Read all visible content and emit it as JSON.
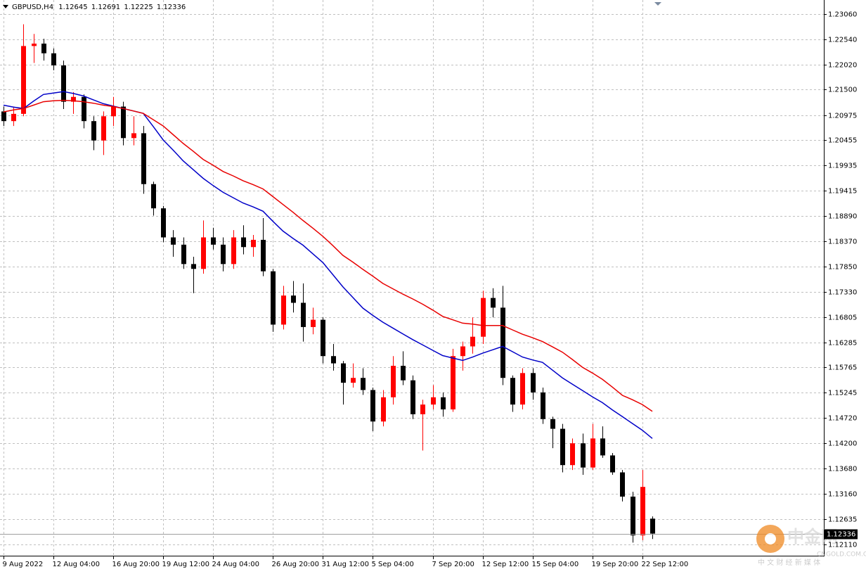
{
  "chart_data": {
    "type": "candlestick",
    "symbol": "GBPUSD,H4",
    "ohlc": [
      1.12645,
      1.12691,
      1.12225,
      1.12336
    ],
    "current_price": 1.12336,
    "up_color": "#ff0000",
    "down_color": "#000000",
    "categories": [
      "9 Aug 2022",
      null,
      null,
      null,
      null,
      "12 Aug 04:00",
      null,
      null,
      null,
      null,
      null,
      "16 Aug 20:00",
      null,
      null,
      null,
      null,
      "19 Aug 12:00",
      null,
      null,
      null,
      null,
      "24 Aug 04:00",
      null,
      null,
      null,
      null,
      null,
      "26 Aug 20:00",
      null,
      null,
      null,
      null,
      "31 Aug 12:00",
      null,
      null,
      null,
      null,
      "5 Sep 04:00",
      null,
      null,
      null,
      null,
      null,
      "7 Sep 20:00",
      null,
      null,
      null,
      null,
      "12 Sep 12:00",
      null,
      null,
      null,
      null,
      "15 Sep 04:00",
      null,
      null,
      null,
      null,
      null,
      "19 Sep 20:00",
      null,
      null,
      null,
      null,
      "22 Sep 12:00",
      null
    ],
    "open": [
      1.2105,
      1.2085,
      1.21,
      1.224,
      1.2245,
      1.2225,
      1.22,
      1.2125,
      1.2135,
      1.2085,
      1.2045,
      1.2095,
      1.2115,
      1.205,
      1.206,
      1.1955,
      1.1905,
      1.1845,
      1.183,
      1.179,
      1.178,
      1.1845,
      1.183,
      1.179,
      1.1845,
      1.1825,
      1.184,
      1.1775,
      1.1665,
      1.1725,
      1.171,
      1.166,
      1.1675,
      1.16,
      1.1585,
      1.1545,
      1.1555,
      1.153,
      1.1465,
      1.1515,
      1.158,
      1.155,
      1.148,
      1.15,
      1.1515,
      1.149,
      1.16,
      1.162,
      1.164,
      1.172,
      1.17,
      1.1555,
      1.15,
      1.1565,
      1.1525,
      1.147,
      1.145,
      1.1375,
      1.142,
      1.137,
      1.143,
      1.1395,
      1.136,
      1.131,
      1.123,
      1.12645
    ],
    "high": [
      1.2115,
      1.2115,
      1.2285,
      1.2265,
      1.2255,
      1.2235,
      1.221,
      1.2145,
      1.214,
      1.2095,
      1.2105,
      1.2135,
      1.2125,
      1.2095,
      1.2075,
      1.196,
      1.191,
      1.186,
      1.1845,
      1.1805,
      1.188,
      1.1865,
      1.1845,
      1.186,
      1.187,
      1.185,
      1.1885,
      1.178,
      1.1745,
      1.1755,
      1.175,
      1.17,
      1.168,
      1.1625,
      1.159,
      1.1585,
      1.1575,
      1.1535,
      1.153,
      1.16,
      1.161,
      1.156,
      1.151,
      1.154,
      1.1525,
      1.1615,
      1.163,
      1.168,
      1.1735,
      1.174,
      1.1745,
      1.156,
      1.1575,
      1.1575,
      1.1535,
      1.1475,
      1.146,
      1.143,
      1.144,
      1.146,
      1.1455,
      1.14,
      1.1365,
      1.132,
      1.1365,
      1.12691
    ],
    "low": [
      1.2075,
      1.2075,
      1.2095,
      1.2205,
      1.221,
      1.219,
      1.211,
      1.21,
      1.207,
      1.2025,
      1.2015,
      1.2075,
      1.2035,
      1.2035,
      1.1935,
      1.189,
      1.1835,
      1.1805,
      1.178,
      1.173,
      1.177,
      1.182,
      1.1775,
      1.178,
      1.181,
      1.1805,
      1.1765,
      1.165,
      1.1655,
      1.169,
      1.163,
      1.1645,
      1.1585,
      1.157,
      1.15,
      1.1535,
      1.152,
      1.1445,
      1.1455,
      1.15,
      1.154,
      1.147,
      1.1405,
      1.149,
      1.1475,
      1.1485,
      1.157,
      1.1605,
      1.1625,
      1.168,
      1.154,
      1.1485,
      1.149,
      1.151,
      1.146,
      1.141,
      1.136,
      1.1365,
      1.1355,
      1.1365,
      1.139,
      1.1355,
      1.13,
      1.1215,
      1.122,
      1.12225
    ],
    "close": [
      1.2085,
      1.21,
      1.224,
      1.2245,
      1.2225,
      1.22,
      1.2125,
      1.2135,
      1.2085,
      1.2045,
      1.2095,
      1.2115,
      1.205,
      1.206,
      1.1955,
      1.1905,
      1.1845,
      1.183,
      1.179,
      1.178,
      1.1845,
      1.183,
      1.179,
      1.1845,
      1.1825,
      1.184,
      1.1775,
      1.1665,
      1.1725,
      1.171,
      1.166,
      1.1675,
      1.16,
      1.1585,
      1.1545,
      1.1555,
      1.153,
      1.1465,
      1.1515,
      1.158,
      1.155,
      1.148,
      1.15,
      1.1515,
      1.149,
      1.16,
      1.162,
      1.164,
      1.172,
      1.17,
      1.1555,
      1.15,
      1.1565,
      1.1525,
      1.147,
      1.145,
      1.1375,
      1.142,
      1.137,
      1.143,
      1.1395,
      1.136,
      1.131,
      1.123,
      1.133,
      1.12336
    ],
    "lines": [
      {
        "color": "#0000c8",
        "values": [
          1.2118,
          1.2114,
          1.2111,
          1.2126,
          1.214,
          1.2143,
          1.2146,
          1.2142,
          1.2137,
          1.2129,
          1.2121,
          1.2116,
          1.2111,
          1.2106,
          1.2101,
          1.2074,
          1.2046,
          1.2025,
          1.2003,
          1.1985,
          1.1967,
          1.1952,
          1.1938,
          1.1927,
          1.1916,
          1.1908,
          1.1899,
          1.1878,
          1.1858,
          1.1843,
          1.1829,
          1.1811,
          1.1793,
          1.1768,
          1.1743,
          1.1721,
          1.1699,
          1.1684,
          1.167,
          1.1658,
          1.1646,
          1.1634,
          1.1623,
          1.1612,
          1.1601,
          1.1596,
          1.1591,
          1.1598,
          1.1606,
          1.1613,
          1.162,
          1.1609,
          1.1598,
          1.1592,
          1.1587,
          1.1571,
          1.1555,
          1.1542,
          1.1529,
          1.1516,
          1.1504,
          1.1489,
          1.1475,
          1.1461,
          1.1447,
          1.143
        ]
      },
      {
        "color": "#e80000",
        "values": [
          1.2104,
          1.2108,
          1.2111,
          1.2118,
          1.2125,
          1.2127,
          1.2128,
          1.2127,
          1.2125,
          1.2122,
          1.2118,
          1.2115,
          1.2111,
          1.2106,
          1.2101,
          1.2088,
          1.2075,
          1.2057,
          1.2039,
          1.2023,
          1.2006,
          1.1994,
          1.1981,
          1.1972,
          1.1962,
          1.1954,
          1.1945,
          1.1929,
          1.1913,
          1.1897,
          1.188,
          1.1864,
          1.1847,
          1.1828,
          1.1808,
          1.1794,
          1.1779,
          1.1765,
          1.175,
          1.1739,
          1.1728,
          1.1718,
          1.1707,
          1.1695,
          1.1682,
          1.1675,
          1.1668,
          1.1666,
          1.1663,
          1.1663,
          1.1663,
          1.1654,
          1.1645,
          1.1638,
          1.163,
          1.1619,
          1.1608,
          1.1593,
          1.1577,
          1.1565,
          1.1552,
          1.1536,
          1.1519,
          1.151,
          1.15,
          1.1486
        ]
      }
    ],
    "ylim": [
      1.1188,
      1.2335
    ],
    "yticks": [
      {
        "value": 1.2306,
        "label": "1.23060"
      },
      {
        "value": 1.2254,
        "label": "1.22540"
      },
      {
        "value": 1.2202,
        "label": "1.22020"
      },
      {
        "value": 1.215,
        "label": "1.21500"
      },
      1.20975,
      1.20455,
      1.19935,
      1.19415,
      {
        "value": 1.1889,
        "label": "1.18890"
      },
      {
        "value": 1.1837,
        "label": "1.18370"
      },
      {
        "value": 1.1785,
        "label": "1.17850"
      },
      {
        "value": 1.1733,
        "label": "1.17330"
      },
      1.16805,
      1.16285,
      1.15765,
      1.15245,
      {
        "value": 1.1472,
        "label": "1.14720"
      },
      {
        "value": 1.142,
        "label": "1.14200"
      },
      {
        "value": 1.1368,
        "label": "1.13680"
      },
      {
        "value": 1.1316,
        "label": "1.13160"
      },
      1.12635,
      {
        "value": 1.1211,
        "label": "1.12110"
      }
    ],
    "grid": true,
    "watermark": {
      "brand": "中金网",
      "domain": "CNGOLD.COM.CN",
      "slogan": "中 文 财 经 新 媒 体"
    }
  }
}
